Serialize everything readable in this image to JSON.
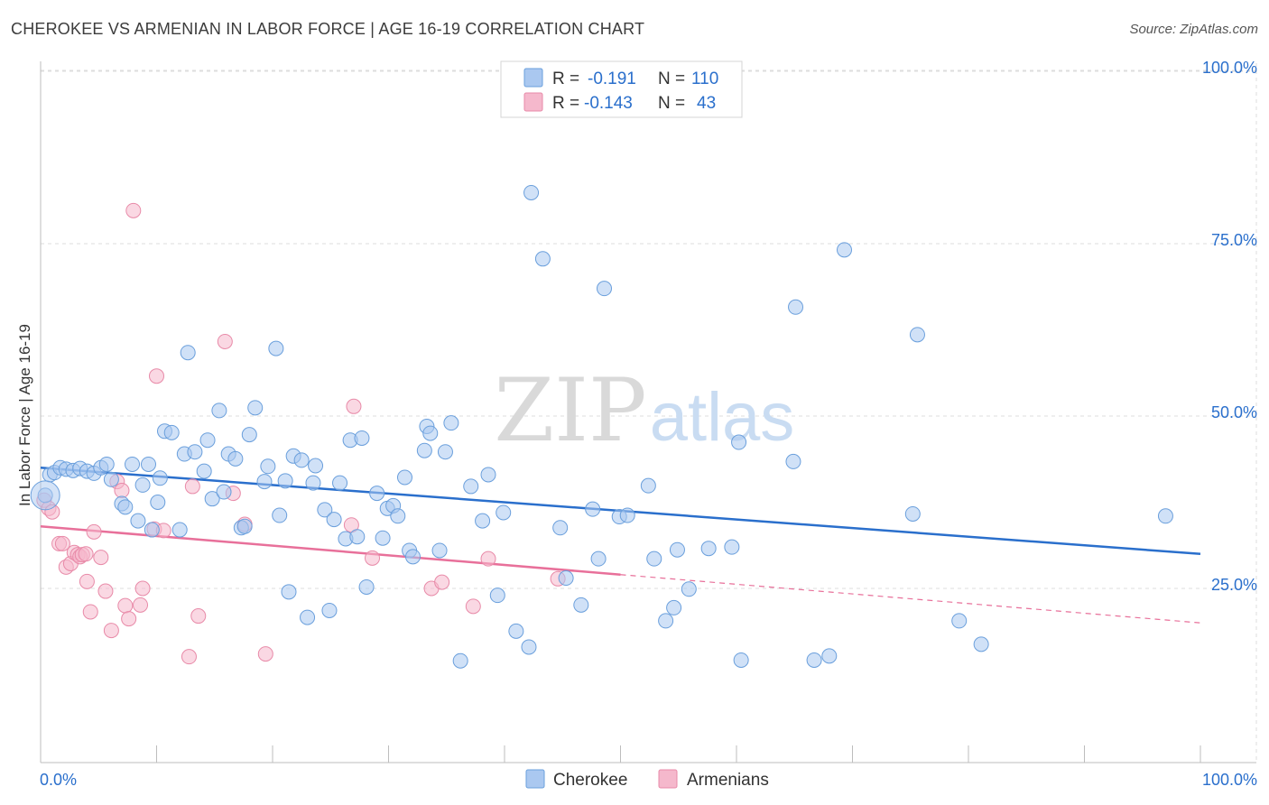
{
  "header": {
    "title": "CHEROKEE VS ARMENIAN IN LABOR FORCE | AGE 16-19 CORRELATION CHART",
    "source": "Source: ZipAtlas.com"
  },
  "watermark": {
    "zip": "ZIP",
    "atlas": "atlas"
  },
  "legend_top": {
    "rows": [
      {
        "r_label": "R = ",
        "r_value": "-0.191",
        "n_label": "N = ",
        "n_value": "110",
        "color": "#aac8f0"
      },
      {
        "r_label": "R = ",
        "r_value": "-0.143",
        "n_label": "N = ",
        "n_value": "43",
        "color": "#f5b8cc"
      }
    ]
  },
  "colors": {
    "blue_fill": "#aac8f0",
    "blue_stroke": "#6a9fdc",
    "blue_line": "#2a6fcc",
    "pink_fill": "#f5b8cc",
    "pink_stroke": "#e88aa8",
    "pink_line": "#e8709a",
    "value_text": "#2a6fcc",
    "grid": "#dddddd"
  },
  "chart_data": {
    "type": "scatter",
    "title": "CHEROKEE VS ARMENIAN IN LABOR FORCE | AGE 16-19 CORRELATION CHART",
    "xlabel": "",
    "ylabel": "In Labor Force | Age 16-19",
    "xlim": [
      0,
      100
    ],
    "ylim": [
      0,
      100
    ],
    "x_tick_labels": [
      "0.0%",
      "100.0%"
    ],
    "y_tick_labels": [
      "25.0%",
      "50.0%",
      "75.0%",
      "100.0%"
    ],
    "y_ticks": [
      25,
      50,
      75,
      100
    ],
    "legend": [
      "Cherokee",
      "Armenians"
    ],
    "series": [
      {
        "name": "Cherokee",
        "r": -0.191,
        "n": 110,
        "trend": {
          "x0": 0,
          "y0": 42.5,
          "x1": 100,
          "y1": 30.0,
          "dash_from": 100
        },
        "points": [
          [
            0.4,
            38.5
          ],
          [
            0.8,
            41.5
          ],
          [
            1.2,
            41.8
          ],
          [
            1.7,
            42.5
          ],
          [
            2.2,
            42.3
          ],
          [
            2.8,
            42.1
          ],
          [
            3.4,
            42.4
          ],
          [
            4.0,
            42.0
          ],
          [
            4.6,
            41.7
          ],
          [
            5.2,
            42.5
          ],
          [
            5.7,
            43.0
          ],
          [
            6.1,
            40.8
          ],
          [
            7.0,
            37.3
          ],
          [
            7.3,
            36.8
          ],
          [
            7.9,
            43.0
          ],
          [
            8.4,
            34.8
          ],
          [
            8.8,
            40.0
          ],
          [
            9.3,
            43.0
          ],
          [
            9.6,
            33.5
          ],
          [
            10.1,
            37.5
          ],
          [
            10.3,
            41.0
          ],
          [
            10.7,
            47.8
          ],
          [
            11.3,
            47.6
          ],
          [
            12.0,
            33.5
          ],
          [
            12.4,
            44.5
          ],
          [
            12.7,
            59.2
          ],
          [
            13.3,
            44.8
          ],
          [
            14.1,
            42.0
          ],
          [
            14.4,
            46.5
          ],
          [
            14.8,
            38.0
          ],
          [
            15.4,
            50.8
          ],
          [
            15.8,
            39.0
          ],
          [
            16.2,
            44.5
          ],
          [
            16.8,
            43.8
          ],
          [
            17.3,
            33.8
          ],
          [
            17.6,
            34.0
          ],
          [
            18.0,
            47.3
          ],
          [
            18.5,
            51.2
          ],
          [
            19.3,
            40.5
          ],
          [
            19.6,
            42.7
          ],
          [
            20.3,
            59.8
          ],
          [
            20.6,
            35.6
          ],
          [
            21.1,
            40.6
          ],
          [
            21.4,
            24.5
          ],
          [
            21.8,
            44.2
          ],
          [
            22.5,
            43.6
          ],
          [
            23.0,
            20.8
          ],
          [
            23.5,
            40.3
          ],
          [
            23.7,
            42.8
          ],
          [
            24.5,
            36.4
          ],
          [
            24.9,
            21.8
          ],
          [
            25.3,
            35.0
          ],
          [
            25.8,
            40.3
          ],
          [
            26.3,
            32.2
          ],
          [
            26.7,
            46.5
          ],
          [
            27.3,
            32.5
          ],
          [
            27.7,
            46.8
          ],
          [
            28.1,
            25.2
          ],
          [
            29.0,
            38.8
          ],
          [
            29.5,
            32.3
          ],
          [
            29.9,
            36.6
          ],
          [
            30.4,
            37.0
          ],
          [
            30.8,
            35.5
          ],
          [
            31.4,
            41.1
          ],
          [
            31.8,
            30.5
          ],
          [
            32.1,
            29.6
          ],
          [
            33.1,
            45.0
          ],
          [
            33.3,
            48.5
          ],
          [
            33.6,
            47.5
          ],
          [
            34.4,
            30.5
          ],
          [
            34.9,
            44.8
          ],
          [
            35.4,
            49.0
          ],
          [
            36.2,
            14.5
          ],
          [
            37.1,
            39.8
          ],
          [
            38.1,
            34.8
          ],
          [
            38.6,
            41.5
          ],
          [
            39.4,
            24.0
          ],
          [
            39.9,
            36.0
          ],
          [
            41.0,
            18.8
          ],
          [
            42.1,
            16.5
          ],
          [
            42.3,
            82.4
          ],
          [
            43.3,
            72.8
          ],
          [
            44.8,
            33.8
          ],
          [
            45.3,
            26.5
          ],
          [
            46.6,
            22.6
          ],
          [
            47.6,
            36.5
          ],
          [
            48.1,
            29.3
          ],
          [
            48.6,
            68.5
          ],
          [
            49.9,
            35.4
          ],
          [
            50.6,
            35.6
          ],
          [
            52.4,
            39.9
          ],
          [
            52.9,
            29.3
          ],
          [
            53.9,
            20.3
          ],
          [
            54.6,
            22.2
          ],
          [
            54.9,
            30.6
          ],
          [
            55.9,
            24.9
          ],
          [
            57.6,
            30.8
          ],
          [
            59.6,
            31.0
          ],
          [
            60.2,
            46.2
          ],
          [
            60.4,
            14.6
          ],
          [
            64.9,
            43.4
          ],
          [
            65.1,
            65.8
          ],
          [
            66.7,
            14.6
          ],
          [
            68.0,
            15.2
          ],
          [
            69.3,
            74.1
          ],
          [
            75.2,
            35.8
          ],
          [
            75.6,
            61.8
          ],
          [
            79.2,
            20.3
          ],
          [
            81.1,
            16.9
          ],
          [
            97.0,
            35.5
          ]
        ]
      },
      {
        "name": "Armenians",
        "r": -0.143,
        "n": 43,
        "trend": {
          "x0": 0,
          "y0": 34.0,
          "x1": 100,
          "y1": 20.0,
          "dash_from": 50
        },
        "points": [
          [
            0.3,
            37.8
          ],
          [
            0.7,
            36.6
          ],
          [
            1.0,
            36.1
          ],
          [
            1.6,
            31.5
          ],
          [
            1.9,
            31.5
          ],
          [
            2.2,
            28.1
          ],
          [
            2.6,
            28.6
          ],
          [
            2.9,
            30.2
          ],
          [
            3.2,
            29.9
          ],
          [
            3.4,
            29.6
          ],
          [
            3.6,
            29.9
          ],
          [
            3.9,
            30.0
          ],
          [
            4.0,
            26.0
          ],
          [
            4.3,
            21.6
          ],
          [
            4.6,
            33.2
          ],
          [
            5.2,
            29.5
          ],
          [
            5.6,
            24.6
          ],
          [
            6.1,
            18.9
          ],
          [
            6.6,
            40.5
          ],
          [
            7.0,
            39.2
          ],
          [
            7.3,
            22.5
          ],
          [
            7.6,
            20.6
          ],
          [
            8.0,
            79.8
          ],
          [
            8.6,
            22.6
          ],
          [
            8.8,
            25.0
          ],
          [
            9.8,
            33.6
          ],
          [
            10.0,
            55.8
          ],
          [
            10.6,
            33.4
          ],
          [
            12.8,
            15.1
          ],
          [
            13.1,
            39.8
          ],
          [
            13.6,
            21.0
          ],
          [
            15.9,
            60.8
          ],
          [
            16.6,
            38.8
          ],
          [
            17.6,
            34.3
          ],
          [
            19.4,
            15.5
          ],
          [
            26.8,
            34.2
          ],
          [
            27.0,
            51.4
          ],
          [
            28.6,
            29.4
          ],
          [
            33.7,
            25.0
          ],
          [
            34.6,
            25.9
          ],
          [
            37.3,
            22.4
          ],
          [
            38.6,
            29.3
          ],
          [
            44.6,
            26.4
          ]
        ]
      }
    ]
  },
  "legend_bottom": {
    "items": [
      "Cherokee",
      "Armenians"
    ]
  }
}
